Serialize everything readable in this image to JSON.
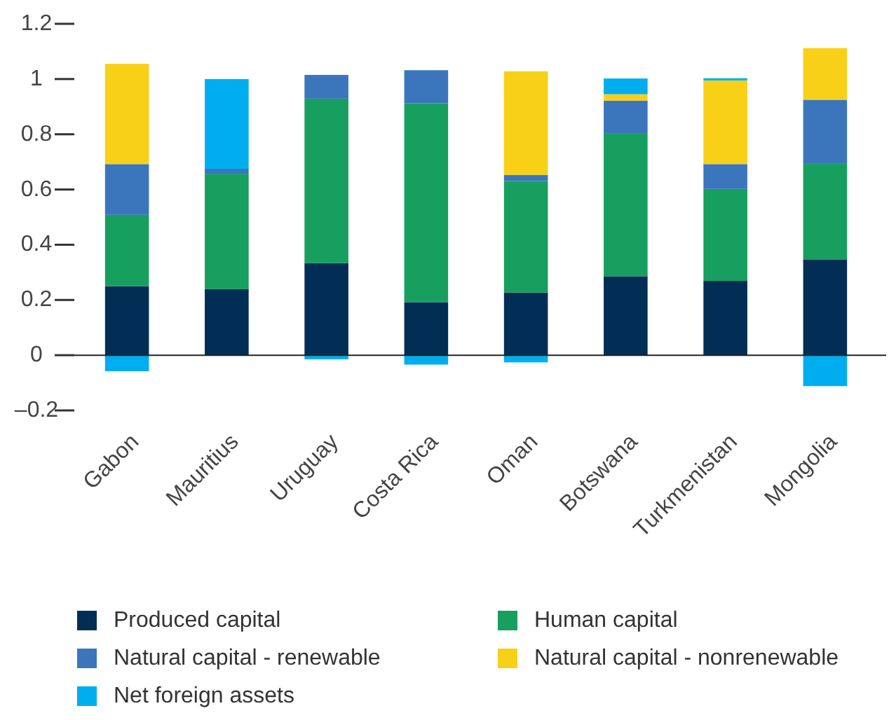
{
  "chart_data": {
    "type": "bar",
    "stacked": true,
    "categories": [
      "Gabon",
      "Mauritius",
      "Uruguay",
      "Costa Rica",
      "Oman",
      "Botswana",
      "Turkmenistan",
      "Mongolia"
    ],
    "series": [
      {
        "name": "Produced capital",
        "color": "#022e55",
        "values": [
          0.25,
          0.239,
          0.333,
          0.192,
          0.227,
          0.286,
          0.269,
          0.347
        ]
      },
      {
        "name": "Human capital",
        "color": "#179f5f",
        "values": [
          0.258,
          0.418,
          0.596,
          0.72,
          0.404,
          0.516,
          0.333,
          0.346
        ]
      },
      {
        "name": "Natural capital - renewable",
        "color": "#3b76bd",
        "values": [
          0.184,
          0.018,
          0.086,
          0.12,
          0.022,
          0.12,
          0.09,
          0.232
        ]
      },
      {
        "name": "Natural capital - nonrenewable",
        "color": "#f8d018",
        "values": [
          0.363,
          0,
          0,
          0,
          0.375,
          0.023,
          0.303,
          0.187
        ]
      },
      {
        "name": "Net foreign assets",
        "color": "#00aeef",
        "values": [
          -0.058,
          0.325,
          -0.015,
          -0.034,
          -0.026,
          0.057,
          0.008,
          -0.112
        ]
      }
    ],
    "ylim": [
      -0.2,
      1.2
    ],
    "yticks": [
      {
        "value": -0.2,
        "label": "–0.2"
      },
      0,
      0.2,
      0.4,
      0.6,
      0.8,
      1,
      1.2
    ],
    "legend": "bottom"
  }
}
